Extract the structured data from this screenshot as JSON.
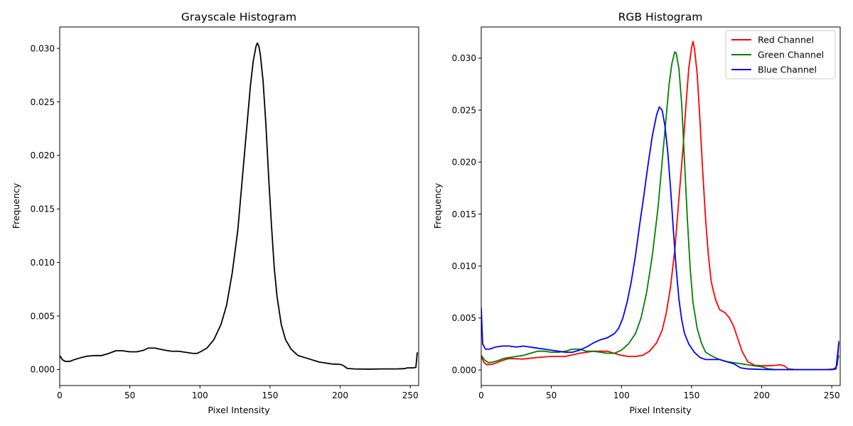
{
  "chart_data": [
    {
      "type": "line",
      "title": "Grayscale Histogram",
      "xlabel": "Pixel Intensity",
      "ylabel": "Frequency",
      "xlim": [
        0,
        256
      ],
      "ylim": [
        -0.0015,
        0.032
      ],
      "xticks": [
        0,
        50,
        100,
        150,
        200,
        250
      ],
      "xtick_labels": [
        "0",
        "50",
        "100",
        "150",
        "200",
        "250"
      ],
      "yticks": [
        0,
        0.005,
        0.01,
        0.015,
        0.02,
        0.025,
        0.03
      ],
      "ytick_labels": [
        "0.000",
        "0.005",
        "0.010",
        "0.015",
        "0.020",
        "0.025",
        "0.030"
      ],
      "grid": false,
      "series": [
        {
          "color": "#000000",
          "points": [
            [
              0,
              0.0013
            ],
            [
              2,
              0.0009
            ],
            [
              4,
              0.00075
            ],
            [
              7,
              0.00075
            ],
            [
              10,
              0.0009
            ],
            [
              15,
              0.0011
            ],
            [
              20,
              0.00125
            ],
            [
              25,
              0.0013
            ],
            [
              30,
              0.0013
            ],
            [
              35,
              0.0015
            ],
            [
              40,
              0.00175
            ],
            [
              45,
              0.00175
            ],
            [
              50,
              0.00165
            ],
            [
              55,
              0.00165
            ],
            [
              60,
              0.0018
            ],
            [
              63,
              0.002
            ],
            [
              68,
              0.002
            ],
            [
              75,
              0.0018
            ],
            [
              80,
              0.0017
            ],
            [
              85,
              0.0017
            ],
            [
              90,
              0.0016
            ],
            [
              95,
              0.0015
            ],
            [
              98,
              0.0015
            ],
            [
              101,
              0.0017
            ],
            [
              105,
              0.002
            ],
            [
              110,
              0.0028
            ],
            [
              115,
              0.0042
            ],
            [
              119,
              0.006
            ],
            [
              123,
              0.009
            ],
            [
              127,
              0.013
            ],
            [
              130,
              0.0175
            ],
            [
              133,
              0.022
            ],
            [
              136,
              0.0265
            ],
            [
              138,
              0.0288
            ],
            [
              140,
              0.0302
            ],
            [
              141,
              0.0305
            ],
            [
              142,
              0.0302
            ],
            [
              143,
              0.0295
            ],
            [
              145,
              0.027
            ],
            [
              147,
              0.023
            ],
            [
              149,
              0.018
            ],
            [
              151,
              0.0135
            ],
            [
              153,
              0.0095
            ],
            [
              155,
              0.0068
            ],
            [
              158,
              0.0042
            ],
            [
              161,
              0.0028
            ],
            [
              165,
              0.0019
            ],
            [
              170,
              0.0013
            ],
            [
              175,
              0.0011
            ],
            [
              180,
              0.0009
            ],
            [
              185,
              0.0007
            ],
            [
              190,
              0.0006
            ],
            [
              195,
              0.0005
            ],
            [
              198,
              0.0005
            ],
            [
              201,
              0.00045
            ],
            [
              203,
              0.0003
            ],
            [
              205,
              0.0001
            ],
            [
              210,
              5e-05
            ],
            [
              220,
              3e-05
            ],
            [
              230,
              5e-05
            ],
            [
              240,
              5e-05
            ],
            [
              246,
              8e-05
            ],
            [
              248,
              0.00015
            ],
            [
              252,
              0.00015
            ],
            [
              254,
              0.0002
            ],
            [
              255,
              0.0016
            ]
          ]
        }
      ]
    },
    {
      "type": "line",
      "title": "RGB Histogram",
      "xlabel": "Pixel Intensity",
      "ylabel": "Frequency",
      "xlim": [
        0,
        256
      ],
      "ylim": [
        -0.0015,
        0.033
      ],
      "xticks": [
        0,
        50,
        100,
        150,
        200,
        250
      ],
      "xtick_labels": [
        "0",
        "50",
        "100",
        "150",
        "200",
        "250"
      ],
      "yticks": [
        0,
        0.005,
        0.01,
        0.015,
        0.02,
        0.025,
        0.03
      ],
      "ytick_labels": [
        "0.000",
        "0.005",
        "0.010",
        "0.015",
        "0.020",
        "0.025",
        "0.030"
      ],
      "grid": false,
      "legend": "top-right",
      "series": [
        {
          "name": "Red Channel",
          "color": "#ff0000",
          "points": [
            [
              0,
              0.0013
            ],
            [
              2,
              0.0007
            ],
            [
              4,
              0.0005
            ],
            [
              8,
              0.00055
            ],
            [
              12,
              0.00075
            ],
            [
              16,
              0.00095
            ],
            [
              20,
              0.0011
            ],
            [
              30,
              0.00105
            ],
            [
              40,
              0.0012
            ],
            [
              50,
              0.0013
            ],
            [
              60,
              0.0013
            ],
            [
              70,
              0.0016
            ],
            [
              80,
              0.0018
            ],
            [
              90,
              0.0018
            ],
            [
              95,
              0.0016
            ],
            [
              100,
              0.0014
            ],
            [
              105,
              0.0013
            ],
            [
              110,
              0.0013
            ],
            [
              115,
              0.0014
            ],
            [
              120,
              0.0018
            ],
            [
              125,
              0.0026
            ],
            [
              129,
              0.0038
            ],
            [
              132,
              0.0055
            ],
            [
              135,
              0.008
            ],
            [
              138,
              0.0115
            ],
            [
              141,
              0.0165
            ],
            [
              144,
              0.0215
            ],
            [
              146,
              0.0255
            ],
            [
              148,
              0.029
            ],
            [
              150,
              0.031
            ],
            [
              151,
              0.0316
            ],
            [
              152,
              0.031
            ],
            [
              154,
              0.0285
            ],
            [
              156,
              0.024
            ],
            [
              158,
              0.019
            ],
            [
              160,
              0.0145
            ],
            [
              162,
              0.011
            ],
            [
              164,
              0.0085
            ],
            [
              167,
              0.0068
            ],
            [
              170,
              0.0058
            ],
            [
              174,
              0.0055
            ],
            [
              177,
              0.005
            ],
            [
              180,
              0.0042
            ],
            [
              183,
              0.003
            ],
            [
              186,
              0.0018
            ],
            [
              190,
              0.0008
            ],
            [
              195,
              0.00045
            ],
            [
              200,
              0.0004
            ],
            [
              205,
              0.0004
            ],
            [
              210,
              0.00045
            ],
            [
              213,
              0.0005
            ],
            [
              216,
              0.0004
            ],
            [
              219,
              0.0001
            ],
            [
              225,
              3e-05
            ],
            [
              235,
              3e-05
            ],
            [
              245,
              3e-05
            ],
            [
              252,
              0.0001
            ],
            [
              254,
              0.0005
            ],
            [
              255,
              0.0028
            ]
          ]
        },
        {
          "name": "Green Channel",
          "color": "#008000",
          "points": [
            [
              0,
              0.0014
            ],
            [
              2,
              0.001
            ],
            [
              5,
              0.0007
            ],
            [
              8,
              0.00075
            ],
            [
              12,
              0.0009
            ],
            [
              16,
              0.0011
            ],
            [
              20,
              0.0012
            ],
            [
              25,
              0.0013
            ],
            [
              30,
              0.0014
            ],
            [
              35,
              0.0016
            ],
            [
              40,
              0.0018
            ],
            [
              45,
              0.0018
            ],
            [
              50,
              0.0017
            ],
            [
              55,
              0.0017
            ],
            [
              60,
              0.0018
            ],
            [
              65,
              0.002
            ],
            [
              70,
              0.002
            ],
            [
              75,
              0.0018
            ],
            [
              80,
              0.0018
            ],
            [
              85,
              0.0017
            ],
            [
              90,
              0.0016
            ],
            [
              95,
              0.0016
            ],
            [
              100,
              0.0019
            ],
            [
              105,
              0.0025
            ],
            [
              110,
              0.0035
            ],
            [
              114,
              0.005
            ],
            [
              118,
              0.0075
            ],
            [
              122,
              0.011
            ],
            [
              126,
              0.0155
            ],
            [
              129,
              0.02
            ],
            [
              132,
              0.0245
            ],
            [
              134,
              0.0275
            ],
            [
              136,
              0.0295
            ],
            [
              138,
              0.0306
            ],
            [
              139,
              0.0305
            ],
            [
              141,
              0.029
            ],
            [
              143,
              0.0255
            ],
            [
              145,
              0.02
            ],
            [
              147,
              0.0145
            ],
            [
              149,
              0.0098
            ],
            [
              151,
              0.0065
            ],
            [
              154,
              0.004
            ],
            [
              157,
              0.0026
            ],
            [
              160,
              0.0017
            ],
            [
              165,
              0.0013
            ],
            [
              170,
              0.001
            ],
            [
              175,
              0.0008
            ],
            [
              180,
              0.0007
            ],
            [
              185,
              0.0006
            ],
            [
              190,
              0.0005
            ],
            [
              195,
              0.0004
            ],
            [
              200,
              0.0003
            ],
            [
              205,
              0.0001
            ],
            [
              210,
              3e-05
            ],
            [
              220,
              3e-05
            ],
            [
              230,
              3e-05
            ],
            [
              240,
              3e-05
            ],
            [
              250,
              3e-05
            ],
            [
              253,
              0.0002
            ],
            [
              255,
              0.0014
            ]
          ]
        },
        {
          "name": "Blue Channel",
          "color": "#0000ff",
          "points": [
            [
              0,
              0.006
            ],
            [
              1,
              0.0025
            ],
            [
              3,
              0.002
            ],
            [
              6,
              0.002
            ],
            [
              10,
              0.0022
            ],
            [
              15,
              0.0023
            ],
            [
              20,
              0.0023
            ],
            [
              25,
              0.0022
            ],
            [
              30,
              0.0023
            ],
            [
              35,
              0.0022
            ],
            [
              40,
              0.0021
            ],
            [
              45,
              0.002
            ],
            [
              50,
              0.0019
            ],
            [
              55,
              0.0018
            ],
            [
              60,
              0.0017
            ],
            [
              65,
              0.0017
            ],
            [
              70,
              0.0019
            ],
            [
              75,
              0.0022
            ],
            [
              80,
              0.0026
            ],
            [
              85,
              0.0029
            ],
            [
              90,
              0.0031
            ],
            [
              95,
              0.0035
            ],
            [
              98,
              0.004
            ],
            [
              101,
              0.005
            ],
            [
              104,
              0.0065
            ],
            [
              107,
              0.0085
            ],
            [
              110,
              0.011
            ],
            [
              113,
              0.014
            ],
            [
              116,
              0.0168
            ],
            [
              119,
              0.0198
            ],
            [
              122,
              0.0225
            ],
            [
              125,
              0.0245
            ],
            [
              127,
              0.0253
            ],
            [
              129,
              0.025
            ],
            [
              131,
              0.0235
            ],
            [
              133,
              0.021
            ],
            [
              135,
              0.0175
            ],
            [
              137,
              0.0135
            ],
            [
              139,
              0.0098
            ],
            [
              141,
              0.0068
            ],
            [
              143,
              0.0048
            ],
            [
              145,
              0.0035
            ],
            [
              148,
              0.0025
            ],
            [
              152,
              0.0017
            ],
            [
              156,
              0.0012
            ],
            [
              160,
              0.001
            ],
            [
              165,
              0.001
            ],
            [
              170,
              0.001
            ],
            [
              175,
              0.0008
            ],
            [
              180,
              0.0006
            ],
            [
              185,
              0.0002
            ],
            [
              190,
              0.0001
            ],
            [
              200,
              5e-05
            ],
            [
              210,
              3e-05
            ],
            [
              220,
              3e-05
            ],
            [
              230,
              3e-05
            ],
            [
              240,
              3e-05
            ],
            [
              250,
              3e-05
            ],
            [
              253,
              0.0001
            ],
            [
              255,
              0.0026
            ]
          ]
        }
      ]
    }
  ]
}
